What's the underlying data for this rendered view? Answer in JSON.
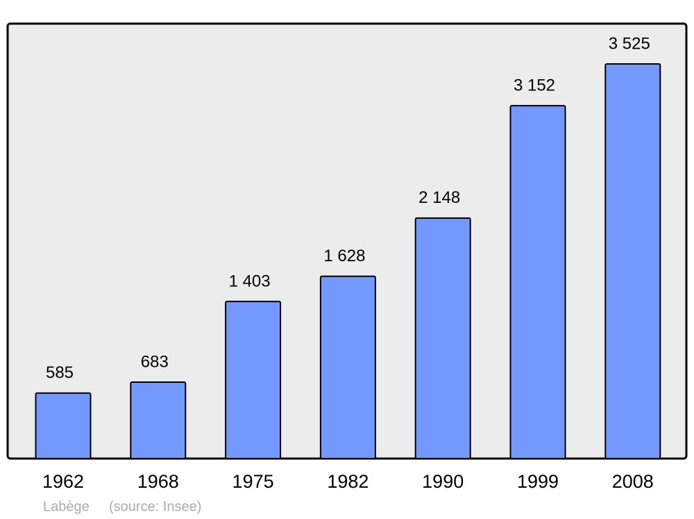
{
  "chart_data": {
    "type": "bar",
    "categories": [
      "1962",
      "1968",
      "1975",
      "1982",
      "1990",
      "1999",
      "2008"
    ],
    "values": [
      585,
      683,
      1403,
      1628,
      2148,
      3152,
      3525
    ],
    "value_labels": [
      "585",
      "683",
      "1 403",
      "1 628",
      "2 148",
      "3 152",
      "3 525"
    ],
    "color": "#7399ff",
    "place": "Labège",
    "source": "(source: Insee)"
  }
}
